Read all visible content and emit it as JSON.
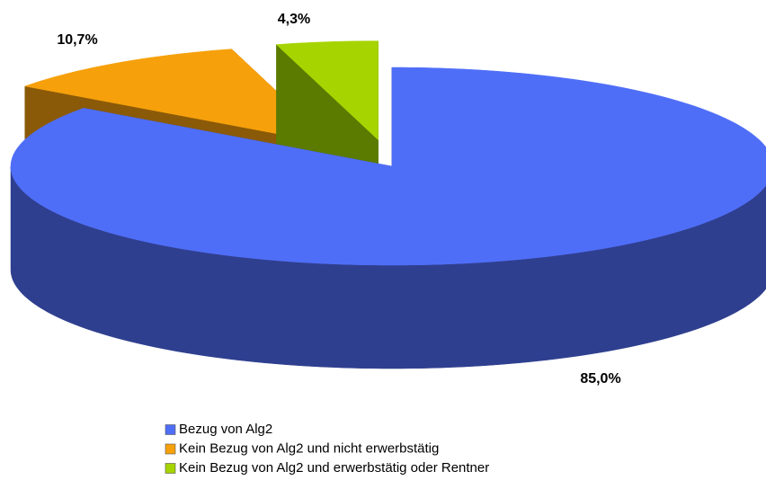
{
  "chart_data": {
    "type": "pie",
    "categories": [
      "Bezug von Alg2",
      "Kein Bezug von Alg2 und nicht erwerbstätig",
      "Kein Bezug von Alg2 und erwerbstätig oder Rentner"
    ],
    "values": [
      85.0,
      10.7,
      4.3
    ],
    "value_labels": [
      "85,0%",
      "10,7%",
      "4,3%"
    ],
    "colors": [
      "#4f6ef7",
      "#f6a00b",
      "#a6d400"
    ],
    "side_colors": [
      "#2f3f8f",
      "#8a5a08",
      "#5b7a00"
    ],
    "legend": "bottom"
  }
}
